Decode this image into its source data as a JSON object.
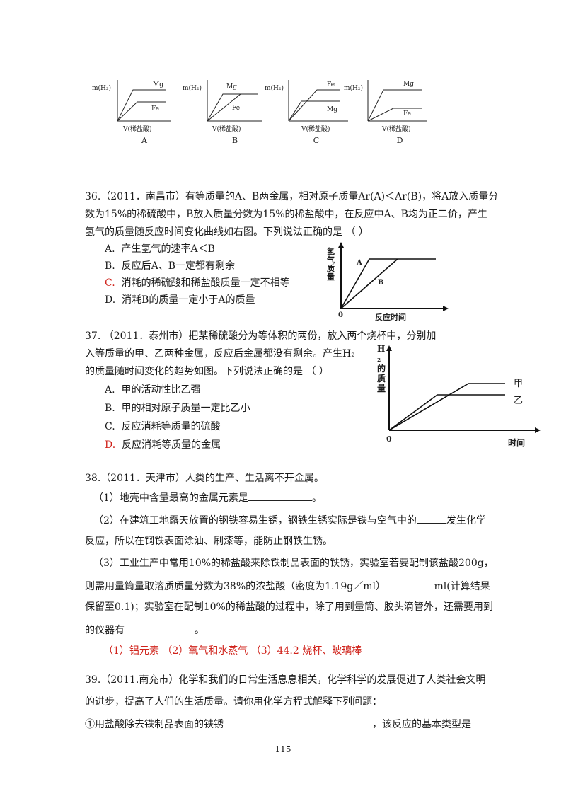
{
  "top_charts": {
    "ylabel": "m(H₂)",
    "xlabel": "V(稀盐酸)",
    "panels": [
      {
        "letter": "A",
        "upper": "Mg",
        "lower": "Fe"
      },
      {
        "letter": "B",
        "upper": "Mg",
        "lower": "Fe"
      },
      {
        "letter": "C",
        "upper": "Fe",
        "lower": "Mg"
      },
      {
        "letter": "D",
        "upper": "Mg",
        "lower": "Fe"
      }
    ]
  },
  "q36": {
    "line1": "36.（2011．南昌市）有等质量的A、B两金属，相对原子质量Ar(A)＜Ar(B)，将A放入质量分",
    "line2": "数为15%的稀硫酸中，B放入质量分数为15%的稀盐酸中，在反应中A、B均为正二价，产生",
    "line3": "氢气的质量随反应时间变化曲线如右图。下列说法正确的是 （          ）",
    "options": [
      {
        "letter": "A.",
        "text": "产生氢气的速率A＜B"
      },
      {
        "letter": "B.",
        "text": "反应后A、B一定都有剩余"
      },
      {
        "letter": "C.",
        "text": "消耗的稀硫酸和稀盐酸质量一定不相等"
      },
      {
        "letter": "D.",
        "text": "消耗B的质量一定小于A的质量"
      }
    ],
    "chart": {
      "ylabel": "氢气质量",
      "xlabel": "反应时间",
      "origin": "0",
      "line_a": "A",
      "line_b": "B"
    }
  },
  "q37": {
    "line1": "37. （2011．泰州市）把某稀硫酸分为等体积的两份，放入两个烧杯中，分别加",
    "line2": "入等质量的甲、乙两种金属，反应后金属都没有剩余。产生H₂",
    "line3": "的质量随时间变化的趋势如图。下列说法正确的是 （          ）",
    "options": [
      {
        "letter": "A.",
        "text": "甲的活动性比乙强"
      },
      {
        "letter": "B.",
        "text": "甲的相对原子质量一定比乙小"
      },
      {
        "letter": "C.",
        "text": "反应消耗等质量的硫酸"
      },
      {
        "letter": "D.",
        "text": "反应消耗等质量的金属"
      }
    ],
    "chart": {
      "ylabel": "H₂的质量",
      "xlabel": "时间",
      "origin": "0",
      "line_jia": "甲",
      "line_yi": "乙"
    }
  },
  "q38": {
    "line1": "38.（2011．天津市）人类的生产、生活离不开金属。",
    "p1a": "（1）地壳中含量最高的金属元素是",
    "p1b": "。",
    "p2a": "（2）在建筑工地露天放置的钢铁容易生锈，钢铁生锈实际是铁与空气中的",
    "p2b": "发生化学",
    "p2c": "反应，所以在钢铁表面涂油、刷漆等，能防止钢铁生锈。",
    "p3a": "（3）工业生产中常用10%的稀盐酸来除铁制品表面的铁锈，实验室若要配制该盐酸200g，",
    "p3b": "则需用量筒量取溶质质量分数为38%的浓盐酸（密度为1.19g／ml）",
    "p3c": "ml(计算结果",
    "p3d": "保留至0.1)；实验室在配制10%的稀盐酸的过程中，除了用到量筒、胶头滴管外，还需要用到",
    "p3e": "的仪器有",
    "p3f": "。",
    "answer": "（1）铝元素    （2）氧气和水蒸气    （3）44.2   烧杯、玻璃棒"
  },
  "q39": {
    "line1": "39.（2011.南充市）化学和我们的日常生活息息相关，化学科学的发展促进了人类社会文明",
    "line2": "的进步，提高了人们的生活质量。请你用化学方程式解释下列问题：",
    "line3a": "①用盐酸除去铁制品表面的铁锈",
    "line3b": "，该反应的基本类型是"
  },
  "page_number": "115"
}
